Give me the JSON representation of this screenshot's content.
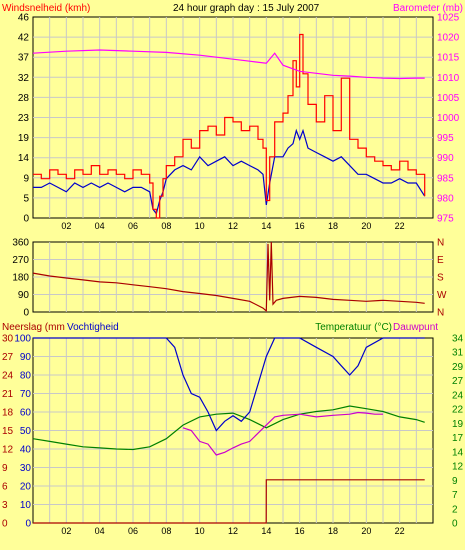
{
  "colors": {
    "background": "#ffff99",
    "plot_bg": "#ffff99",
    "grid": "#c8c8c8",
    "axis_text": "#000000",
    "wind_speed": "#ff0000",
    "wind_avg": "#0000cc",
    "barometer": "#ff00ff",
    "direction": "#aa0000",
    "humidity": "#0000cc",
    "temperature": "#008000",
    "dewpoint": "#cc00cc",
    "rain": "#aa0000"
  },
  "header": {
    "title": "24 hour graph day : 15 July 2007"
  },
  "chart_data": [
    {
      "type": "line",
      "label_left": "Windsnelheid (kmh)",
      "label_right": "Barometer (mb)",
      "x_ticks": [
        "02",
        "04",
        "06",
        "08",
        "10",
        "12",
        "14",
        "16",
        "18",
        "20",
        "22"
      ],
      "y_left_ticks": [
        "0",
        "5",
        "9",
        "14",
        "19",
        "23",
        "28",
        "32",
        "37",
        "42",
        "46"
      ],
      "y_right_ticks": [
        "975",
        "980",
        "985",
        "990",
        "995",
        "1000",
        "1005",
        "1010",
        "1015",
        "1020",
        "1025"
      ],
      "ylim_left": [
        0,
        46
      ],
      "ylim_right": [
        975,
        1025
      ],
      "xlim": [
        0,
        24
      ],
      "grid": true,
      "series": [
        {
          "name": "Windsnelheid (kmh)",
          "axis": "left",
          "x": [
            0,
            0.5,
            1,
            1.5,
            2,
            2.5,
            3,
            3.5,
            4,
            4.5,
            5,
            5.5,
            6,
            6.5,
            7,
            7.2,
            7.4,
            7.6,
            7.8,
            8,
            8.5,
            9,
            9.5,
            10,
            10.5,
            11,
            11.5,
            12,
            12.5,
            13,
            13.5,
            13.8,
            14,
            14.2,
            14.5,
            15,
            15.3,
            15.6,
            15.8,
            16,
            16.2,
            16.5,
            17,
            17.5,
            18,
            18.5,
            19,
            19.5,
            20,
            20.5,
            21,
            21.5,
            22,
            22.5,
            23,
            23.5
          ],
          "y": [
            10,
            9,
            11,
            10,
            9,
            11,
            10,
            12,
            10,
            11,
            10,
            9,
            11,
            10,
            8,
            2,
            0,
            5,
            9,
            12,
            14,
            18,
            16,
            20,
            21,
            19,
            23,
            22,
            20,
            21,
            18,
            16,
            4,
            14,
            22,
            24,
            28,
            36,
            30,
            42,
            33,
            26,
            22,
            28,
            20,
            32,
            18,
            16,
            14,
            13,
            12,
            11,
            13,
            11,
            10,
            5
          ],
          "color": "#ff0000"
        },
        {
          "name": "",
          "axis": "left",
          "x": [
            0,
            0.5,
            1,
            1.5,
            2,
            2.5,
            3,
            3.5,
            4,
            4.5,
            5,
            5.5,
            6,
            6.5,
            7,
            7.2,
            7.4,
            7.6,
            7.8,
            8,
            8.5,
            9,
            9.5,
            10,
            10.5,
            11,
            11.5,
            12,
            12.5,
            13,
            13.5,
            13.8,
            14,
            14.2,
            14.5,
            15,
            15.3,
            15.6,
            15.8,
            16,
            16.2,
            16.5,
            17,
            17.5,
            18,
            18.5,
            19,
            19.5,
            20,
            20.5,
            21,
            21.5,
            22,
            22.5,
            23,
            23.5
          ],
          "y": [
            7,
            7,
            8,
            7,
            6,
            8,
            7,
            8,
            7,
            8,
            7,
            6,
            7,
            7,
            6,
            2,
            1,
            4,
            6,
            9,
            11,
            12,
            11,
            14,
            12,
            13,
            14,
            12,
            13,
            12,
            11,
            10,
            3,
            8,
            14,
            14,
            16,
            17,
            20,
            18,
            20,
            16,
            15,
            14,
            13,
            14,
            12,
            10,
            10,
            9,
            8,
            8,
            9,
            8,
            8,
            5
          ],
          "color": "#0000cc"
        },
        {
          "name": "Barometer (mb)",
          "axis": "right",
          "x": [
            0,
            2,
            4,
            6,
            8,
            10,
            12,
            13,
            14,
            14.5,
            15,
            16,
            17,
            18,
            19,
            20,
            21,
            22,
            23,
            23.5
          ],
          "y": [
            1016,
            1016.5,
            1016.8,
            1016.5,
            1016.2,
            1015.5,
            1014.5,
            1014,
            1013.5,
            1016,
            1013,
            1011.5,
            1011,
            1010.5,
            1010.3,
            1010,
            1009.8,
            1009.7,
            1009.8,
            1009.8
          ],
          "color": "#ff00ff"
        }
      ]
    },
    {
      "type": "line",
      "y_right_ticks": [
        "N",
        "W",
        "S",
        "E",
        "N"
      ],
      "y_left_ticks": [
        "0",
        "90",
        "180",
        "270",
        "360"
      ],
      "ylim": [
        0,
        360
      ],
      "xlim": [
        0,
        24
      ],
      "grid": true,
      "series": [
        {
          "name": "",
          "x": [
            0,
            1,
            2,
            3,
            4,
            5,
            6,
            7,
            8,
            9,
            10,
            11,
            12,
            13,
            13.8,
            14,
            14.1,
            14.2,
            14.3,
            14.4,
            14.6,
            15,
            16,
            17,
            18,
            19,
            20,
            21,
            22,
            23,
            23.5
          ],
          "y": [
            200,
            185,
            175,
            165,
            155,
            150,
            140,
            130,
            120,
            105,
            95,
            85,
            70,
            55,
            20,
            5,
            350,
            60,
            360,
            40,
            60,
            70,
            80,
            75,
            65,
            60,
            55,
            60,
            55,
            50,
            45
          ],
          "color": "#aa0000"
        }
      ]
    },
    {
      "type": "line",
      "label_left_1": "Neerslag (mm",
      "label_left_2": "Vochtigheid",
      "label_right_1": "Temperatuur (°C)",
      "label_right_2": "Dauwpunt",
      "y_rain_ticks": [
        "0",
        "3",
        "6",
        "9",
        "12",
        "15",
        "18",
        "21",
        "24",
        "27",
        "30"
      ],
      "y_hum_ticks": [
        "0",
        "10",
        "20",
        "30",
        "40",
        "50",
        "60",
        "70",
        "80",
        "90",
        "100"
      ],
      "y_temp_ticks": [
        "0",
        "2",
        "7",
        "9",
        "12",
        "14",
        "17",
        "19",
        "22",
        "24",
        "27",
        "29",
        "31",
        "34"
      ],
      "ylim_humidity": [
        0,
        100
      ],
      "ylim_temp": [
        0,
        34
      ],
      "xlim": [
        0,
        24
      ],
      "grid": true,
      "series": [
        {
          "name": "Vochtigheid",
          "axis": "humidity",
          "x": [
            0,
            2,
            4,
            6,
            8,
            8.5,
            9,
            9.5,
            10,
            10.5,
            11,
            11.5,
            12,
            12.5,
            13,
            13.5,
            14,
            14.5,
            15,
            16,
            17,
            18,
            18.5,
            19,
            19.5,
            20,
            21,
            22,
            23,
            23.5
          ],
          "y": [
            100,
            100,
            100,
            100,
            100,
            95,
            80,
            70,
            68,
            60,
            50,
            55,
            58,
            55,
            60,
            75,
            90,
            100,
            100,
            100,
            95,
            90,
            85,
            80,
            85,
            95,
            100,
            100,
            100,
            100
          ],
          "color": "#0000cc"
        },
        {
          "name": "Temperatuur (°C)",
          "axis": "temp",
          "x": [
            0,
            1,
            2,
            3,
            4,
            5,
            6,
            7,
            8,
            9,
            10,
            11,
            12,
            13,
            14,
            15,
            16,
            17,
            18,
            19,
            20,
            21,
            22,
            23,
            23.5
          ],
          "y": [
            15.5,
            15,
            14.5,
            14,
            13.8,
            13.6,
            13.5,
            14,
            15.5,
            18,
            19.5,
            20,
            20.2,
            19,
            17.5,
            19,
            20,
            20.5,
            20.8,
            21.5,
            21,
            20.5,
            19.5,
            19,
            18.5
          ],
          "color": "#008000"
        },
        {
          "name": "Dauwpunt",
          "axis": "temp",
          "x": [
            9,
            9.5,
            10,
            10.5,
            11,
            11.5,
            12,
            12.5,
            13,
            13.5,
            14,
            14.5,
            15,
            16,
            17,
            18,
            19,
            19.5,
            20,
            20.5,
            21
          ],
          "y": [
            17.5,
            17,
            15,
            14.5,
            12.5,
            13,
            13.8,
            14.5,
            15,
            16.5,
            18,
            19.5,
            19.8,
            20,
            19.5,
            19.8,
            20,
            20.3,
            20.2,
            20,
            20
          ],
          "color": "#cc00cc"
        },
        {
          "name": "Neerslag (mm",
          "axis": "rain",
          "x": [
            0,
            13.99,
            14,
            23.5
          ],
          "y": [
            0,
            0,
            7,
            7
          ],
          "color": "#aa0000"
        }
      ]
    }
  ]
}
